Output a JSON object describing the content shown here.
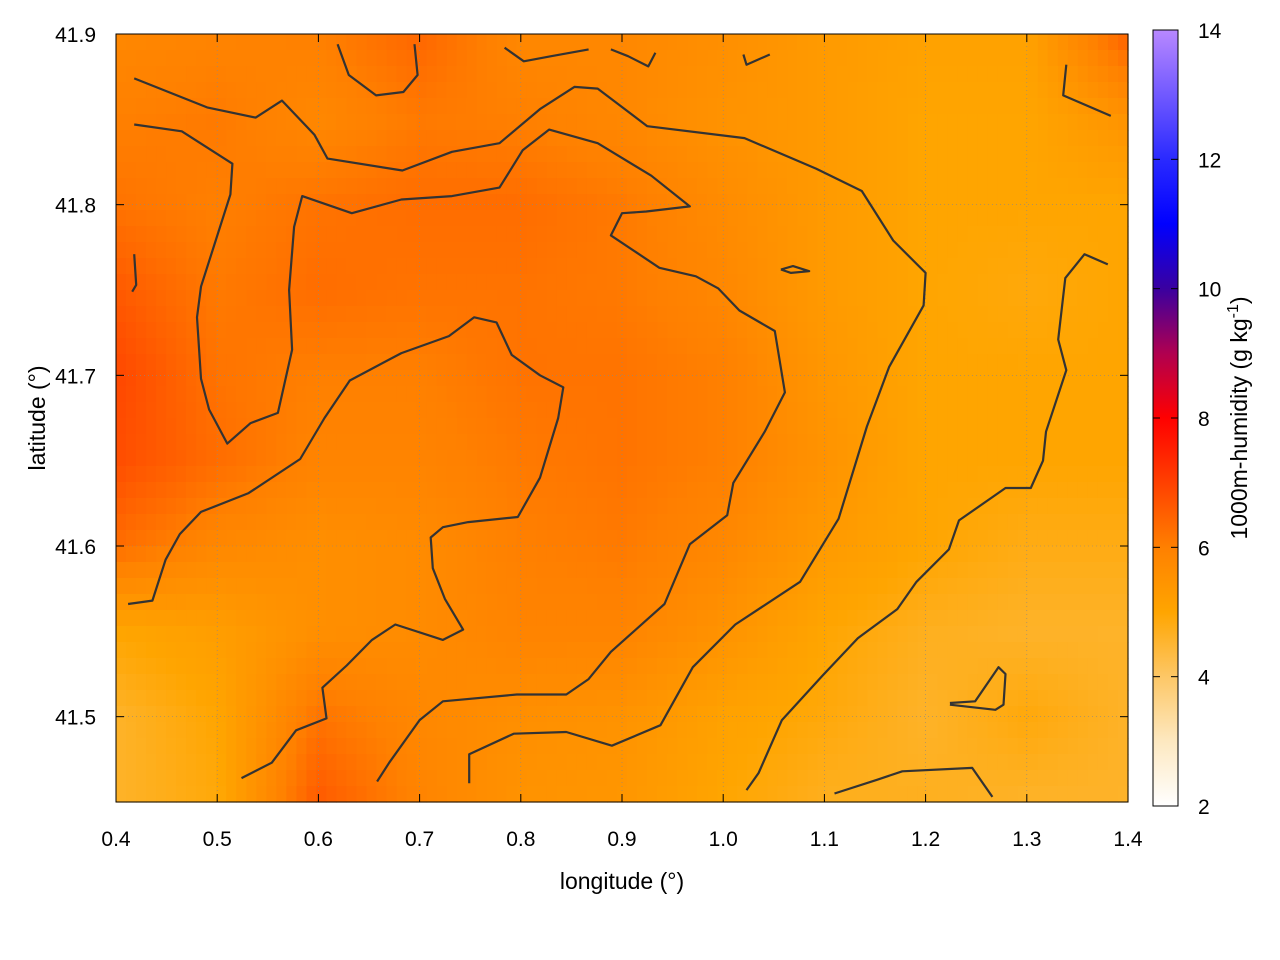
{
  "chart_data": {
    "type": "heatmap",
    "xlabel": "longitude (°)",
    "ylabel": "latitude (°)",
    "colorbar_label": "1000m-humidity (g kg",
    "colorbar_label_sup": "-1",
    "colorbar_label_end": ")",
    "xlim": [
      0.4,
      1.4
    ],
    "ylim": [
      41.45,
      41.9
    ],
    "zlim": [
      2,
      14
    ],
    "grid": true,
    "xticks": [
      "0.4",
      "0.5",
      "0.6",
      "0.7",
      "0.8",
      "0.9",
      "1.0",
      "1.1",
      "1.2",
      "1.3",
      "1.4"
    ],
    "yticks": [
      "41.5",
      "41.6",
      "41.7",
      "41.8",
      "41.9"
    ],
    "cbticks": [
      "2",
      "4",
      "6",
      "8",
      "10",
      "12",
      "14"
    ],
    "palette": [
      [
        2,
        "#ffffff"
      ],
      [
        3,
        "#fde8c0"
      ],
      [
        4,
        "#fdc766"
      ],
      [
        5,
        "#ffa500"
      ],
      [
        6,
        "#ff8000"
      ],
      [
        7,
        "#ff4000"
      ],
      [
        8,
        "#ff0000"
      ],
      [
        9,
        "#b00050"
      ],
      [
        10,
        "#3a00a0"
      ],
      [
        11,
        "#0000ff"
      ],
      [
        12,
        "#2a2aff"
      ],
      [
        14,
        "#b888ff"
      ]
    ],
    "contour_color": "#333333",
    "grid_lon": [
      0.4,
      0.5,
      0.6,
      0.7,
      0.8,
      0.9,
      1.0,
      1.1,
      1.2,
      1.3,
      1.4
    ],
    "grid_lat": [
      41.9,
      41.85,
      41.8,
      41.75,
      41.7,
      41.65,
      41.6,
      41.55,
      41.5,
      41.45
    ],
    "values": [
      [
        5.8,
        5.9,
        6.0,
        6.4,
        5.8,
        5.8,
        5.6,
        5.3,
        5.1,
        5.1,
        6.5
      ],
      [
        6.0,
        6.1,
        5.8,
        6.1,
        6.0,
        5.8,
        5.5,
        5.3,
        5.0,
        5.0,
        5.5
      ],
      [
        6.2,
        6.0,
        6.2,
        6.3,
        6.3,
        6.1,
        5.7,
        5.3,
        5.0,
        5.0,
        5.0
      ],
      [
        6.6,
        6.1,
        6.3,
        6.2,
        6.2,
        6.1,
        5.8,
        5.3,
        5.0,
        4.9,
        5.0
      ],
      [
        6.9,
        6.2,
        6.0,
        6.0,
        6.2,
        6.2,
        6.0,
        5.4,
        5.0,
        5.0,
        5.0
      ],
      [
        6.8,
        6.3,
        5.9,
        5.9,
        6.1,
        6.2,
        6.0,
        5.5,
        5.0,
        5.0,
        5.0
      ],
      [
        6.3,
        5.8,
        5.6,
        5.7,
        6.0,
        6.1,
        5.8,
        5.3,
        5.0,
        4.8,
        4.8
      ],
      [
        5.0,
        5.2,
        5.6,
        5.7,
        5.9,
        5.9,
        5.5,
        5.0,
        4.7,
        4.6,
        4.6
      ],
      [
        4.6,
        5.0,
        6.2,
        5.8,
        5.6,
        5.5,
        5.1,
        4.9,
        4.6,
        4.9,
        4.6
      ],
      [
        4.6,
        4.9,
        6.6,
        5.9,
        5.5,
        5.4,
        5.0,
        4.7,
        4.7,
        4.6,
        4.6
      ]
    ],
    "contours": [
      [
        [
          0.418,
          41.874
        ],
        [
          0.49,
          41.857
        ],
        [
          0.538,
          41.851
        ],
        [
          0.564,
          41.861
        ],
        [
          0.596,
          41.841
        ],
        [
          0.609,
          41.827
        ],
        [
          0.683,
          41.82
        ],
        [
          0.732,
          41.831
        ],
        [
          0.779,
          41.836
        ],
        [
          0.819,
          41.856
        ],
        [
          0.853,
          41.869
        ],
        [
          0.876,
          41.868
        ],
        [
          0.925,
          41.846
        ],
        [
          1.021,
          41.839
        ],
        [
          1.092,
          41.821
        ],
        [
          1.137,
          41.808
        ],
        [
          1.168,
          41.779
        ],
        [
          1.2,
          41.76
        ],
        [
          1.198,
          41.741
        ],
        [
          1.164,
          41.705
        ],
        [
          1.142,
          41.67
        ],
        [
          1.114,
          41.616
        ],
        [
          1.076,
          41.579
        ],
        [
          1.012,
          41.554
        ],
        [
          0.97,
          41.529
        ],
        [
          0.938,
          41.495
        ],
        [
          0.89,
          41.483
        ],
        [
          0.845,
          41.491
        ],
        [
          0.793,
          41.49
        ],
        [
          0.749,
          41.478
        ],
        [
          0.749,
          41.461
        ]
      ],
      [
        [
          0.418,
          41.847
        ],
        [
          0.465,
          41.843
        ],
        [
          0.515,
          41.824
        ],
        [
          0.513,
          41.806
        ],
        [
          0.484,
          41.752
        ],
        [
          0.48,
          41.734
        ],
        [
          0.484,
          41.698
        ],
        [
          0.492,
          41.68
        ],
        [
          0.51,
          41.66
        ],
        [
          0.533,
          41.672
        ],
        [
          0.56,
          41.678
        ],
        [
          0.574,
          41.715
        ],
        [
          0.571,
          41.75
        ],
        [
          0.576,
          41.787
        ],
        [
          0.584,
          41.805
        ],
        [
          0.633,
          41.795
        ],
        [
          0.682,
          41.803
        ],
        [
          0.732,
          41.805
        ],
        [
          0.779,
          41.81
        ],
        [
          0.802,
          41.832
        ],
        [
          0.828,
          41.844
        ],
        [
          0.876,
          41.836
        ],
        [
          0.929,
          41.817
        ],
        [
          0.967,
          41.799
        ],
        [
          0.924,
          41.796
        ],
        [
          0.9,
          41.795
        ],
        [
          0.889,
          41.782
        ],
        [
          0.937,
          41.763
        ],
        [
          0.973,
          41.758
        ],
        [
          0.995,
          41.751
        ],
        [
          1.016,
          41.738
        ],
        [
          1.051,
          41.726
        ],
        [
          1.061,
          41.69
        ],
        [
          1.041,
          41.667
        ],
        [
          1.01,
          41.637
        ],
        [
          1.004,
          41.618
        ],
        [
          0.967,
          41.601
        ],
        [
          0.942,
          41.566
        ],
        [
          0.889,
          41.538
        ],
        [
          0.867,
          41.522
        ],
        [
          0.845,
          41.513
        ],
        [
          0.796,
          41.513
        ],
        [
          0.723,
          41.509
        ],
        [
          0.7,
          41.498
        ],
        [
          0.67,
          41.473
        ],
        [
          0.658,
          41.462
        ]
      ],
      [
        [
          0.412,
          41.566
        ],
        [
          0.436,
          41.568
        ],
        [
          0.449,
          41.592
        ],
        [
          0.463,
          41.607
        ],
        [
          0.484,
          41.62
        ],
        [
          0.531,
          41.631
        ],
        [
          0.582,
          41.651
        ],
        [
          0.606,
          41.675
        ],
        [
          0.631,
          41.697
        ],
        [
          0.682,
          41.713
        ],
        [
          0.729,
          41.723
        ],
        [
          0.754,
          41.734
        ],
        [
          0.776,
          41.731
        ],
        [
          0.791,
          41.712
        ],
        [
          0.819,
          41.7
        ],
        [
          0.842,
          41.693
        ],
        [
          0.837,
          41.675
        ],
        [
          0.819,
          41.64
        ],
        [
          0.797,
          41.617
        ],
        [
          0.748,
          41.614
        ],
        [
          0.723,
          41.611
        ],
        [
          0.711,
          41.605
        ],
        [
          0.713,
          41.587
        ],
        [
          0.725,
          41.569
        ],
        [
          0.743,
          41.551
        ],
        [
          0.723,
          41.545
        ],
        [
          0.676,
          41.554
        ],
        [
          0.653,
          41.545
        ],
        [
          0.628,
          41.53
        ],
        [
          0.604,
          41.517
        ],
        [
          0.608,
          41.499
        ],
        [
          0.578,
          41.492
        ],
        [
          0.554,
          41.473
        ],
        [
          0.524,
          41.464
        ]
      ],
      [
        [
          1.023,
          41.457
        ],
        [
          1.035,
          41.467
        ],
        [
          1.058,
          41.498
        ],
        [
          1.098,
          41.524
        ],
        [
          1.133,
          41.546
        ],
        [
          1.172,
          41.563
        ],
        [
          1.191,
          41.579
        ],
        [
          1.223,
          41.598
        ],
        [
          1.233,
          41.615
        ],
        [
          1.279,
          41.634
        ],
        [
          1.304,
          41.634
        ],
        [
          1.316,
          41.65
        ],
        [
          1.319,
          41.667
        ],
        [
          1.339,
          41.703
        ],
        [
          1.331,
          41.721
        ],
        [
          1.338,
          41.757
        ],
        [
          1.357,
          41.771
        ],
        [
          1.38,
          41.765
        ]
      ],
      [
        [
          0.418,
          41.771
        ],
        [
          0.42,
          41.753
        ],
        [
          0.416,
          41.749
        ]
      ],
      [
        [
          0.619,
          41.894
        ],
        [
          0.63,
          41.876
        ],
        [
          0.657,
          41.864
        ],
        [
          0.684,
          41.866
        ],
        [
          0.698,
          41.876
        ],
        [
          0.695,
          41.894
        ]
      ],
      [
        [
          0.784,
          41.892
        ],
        [
          0.803,
          41.884
        ],
        [
          0.83,
          41.887
        ],
        [
          0.867,
          41.891
        ]
      ],
      [
        [
          0.889,
          41.891
        ],
        [
          0.906,
          41.887
        ],
        [
          0.926,
          41.881
        ],
        [
          0.933,
          41.889
        ]
      ],
      [
        [
          1.02,
          41.888
        ],
        [
          1.023,
          41.882
        ],
        [
          1.046,
          41.888
        ]
      ],
      [
        [
          1.339,
          41.882
        ],
        [
          1.336,
          41.864
        ],
        [
          1.383,
          41.852
        ]
      ],
      [
        [
          1.057,
          41.762
        ],
        [
          1.069,
          41.764
        ],
        [
          1.085,
          41.761
        ],
        [
          1.067,
          41.76
        ],
        [
          1.057,
          41.762
        ]
      ],
      [
        [
          1.224,
          41.508
        ],
        [
          1.249,
          41.509
        ],
        [
          1.272,
          41.529
        ],
        [
          1.279,
          41.525
        ],
        [
          1.277,
          41.507
        ],
        [
          1.269,
          41.504
        ],
        [
          1.224,
          41.507
        ]
      ],
      [
        [
          1.11,
          41.455
        ],
        [
          1.152,
          41.463
        ],
        [
          1.177,
          41.468
        ],
        [
          1.246,
          41.47
        ],
        [
          1.266,
          41.453
        ]
      ]
    ]
  }
}
